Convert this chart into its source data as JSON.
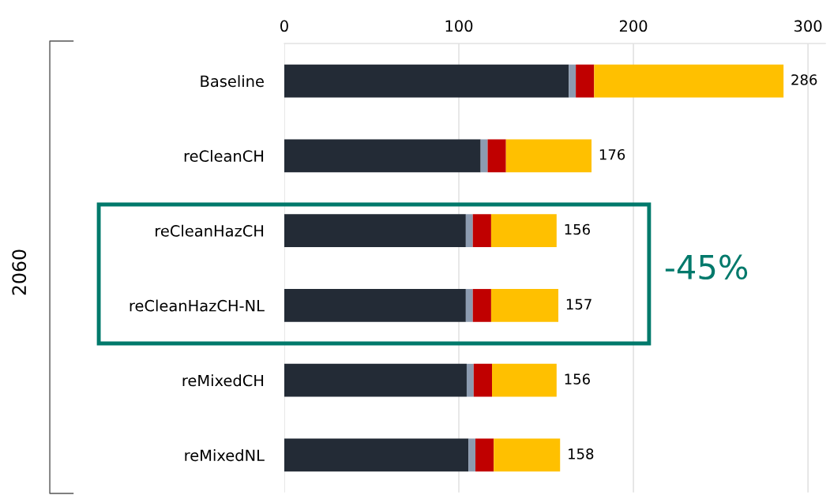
{
  "chart_data": {
    "type": "bar",
    "orientation": "horizontal",
    "stacked": true,
    "categories": [
      "Baseline",
      "reCleanCH",
      "reCleanHazCH",
      "reCleanHazCH-NL",
      "reMixedCH",
      "reMixedNL"
    ],
    "series": [
      {
        "color": "#232b36",
        "values": [
          163,
          112.5,
          104,
          104,
          104.5,
          105.5
        ]
      },
      {
        "color": "#8c9bb0",
        "values": [
          4,
          4,
          4,
          4,
          4,
          4
        ]
      },
      {
        "color": "#c00000",
        "values": [
          10.5,
          10.5,
          10.5,
          10.5,
          10.5,
          10.5
        ]
      },
      {
        "color": "#ffc000",
        "values": [
          108.5,
          49,
          37.5,
          38.5,
          37,
          38
        ]
      }
    ],
    "totals": [
      "286",
      "176",
      "156",
      "157",
      "156",
      "158"
    ],
    "xlim": [
      0,
      310
    ],
    "xticks": [
      0,
      100,
      200,
      300
    ],
    "grid": "x",
    "legend": false,
    "annotations": [
      "-45%",
      "2060"
    ]
  }
}
